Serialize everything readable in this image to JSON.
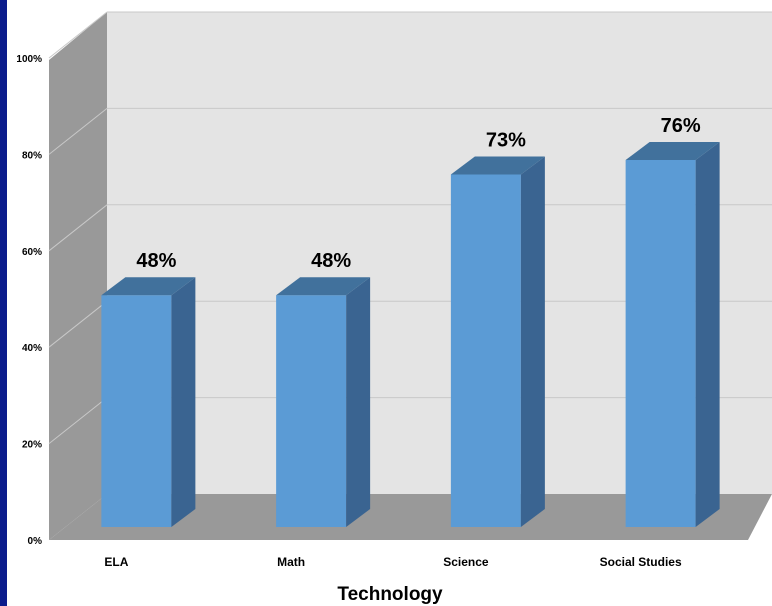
{
  "chart_data": {
    "type": "bar",
    "title": "",
    "xlabel": "Technology",
    "ylabel": "",
    "categories": [
      "ELA",
      "Math",
      "Science",
      "Social Studies"
    ],
    "values": [
      48,
      48,
      73,
      76
    ],
    "data_labels": [
      "48%",
      "48%",
      "73%",
      "76%"
    ],
    "y_ticks": [
      "0%",
      "20%",
      "40%",
      "60%",
      "80%",
      "100%"
    ],
    "ylim": [
      0,
      100
    ],
    "style": "3d-column",
    "grid": true,
    "legend": "none",
    "colors": {
      "bar_front": "#5b9bd5",
      "bar_top": "#41719c",
      "bar_side": "#3a6491",
      "back_wall": "#e4e4e4",
      "side_wall": "#999999",
      "floor": "#999999",
      "frame_left": "#0b1c8c"
    }
  }
}
